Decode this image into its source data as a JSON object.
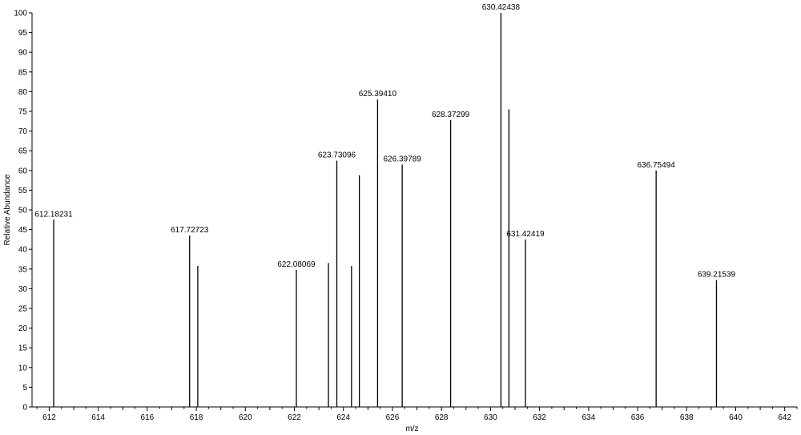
{
  "chart_data": {
    "type": "bar",
    "title": "",
    "xlabel": "m/z",
    "ylabel": "Relative Abundance",
    "xlim": [
      611.3,
      642.5
    ],
    "ylim": [
      0,
      100
    ],
    "grid": false,
    "legend": "none",
    "colors": {
      "axis": "#000000",
      "peak": "#000000"
    },
    "x_ticks": [
      612,
      614,
      616,
      618,
      620,
      622,
      624,
      626,
      628,
      630,
      632,
      634,
      636,
      638,
      640,
      642
    ],
    "y_ticks": [
      0,
      5,
      10,
      15,
      20,
      25,
      30,
      35,
      40,
      45,
      50,
      55,
      60,
      65,
      70,
      75,
      80,
      85,
      90,
      95,
      100
    ],
    "peaks": [
      {
        "x": 612.18231,
        "y": 47.5,
        "label": "612.18231"
      },
      {
        "x": 617.72723,
        "y": 43.5,
        "label": "617.72723"
      },
      {
        "x": 618.06,
        "y": 35.8,
        "label": ""
      },
      {
        "x": 622.08069,
        "y": 34.8,
        "label": "622.08069"
      },
      {
        "x": 623.39,
        "y": 36.5,
        "label": ""
      },
      {
        "x": 623.73096,
        "y": 62.5,
        "label": "623.73096"
      },
      {
        "x": 624.33,
        "y": 35.8,
        "label": ""
      },
      {
        "x": 624.65,
        "y": 58.8,
        "label": ""
      },
      {
        "x": 625.3941,
        "y": 78.0,
        "label": "625.39410"
      },
      {
        "x": 626.39789,
        "y": 61.5,
        "label": "626.39789"
      },
      {
        "x": 628.37299,
        "y": 72.8,
        "label": "628.37299"
      },
      {
        "x": 630.42438,
        "y": 100.0,
        "label": "630.42438"
      },
      {
        "x": 630.75,
        "y": 75.5,
        "label": ""
      },
      {
        "x": 631.42419,
        "y": 42.5,
        "label": "631.42419"
      },
      {
        "x": 636.75494,
        "y": 60.0,
        "label": "636.75494"
      },
      {
        "x": 639.21539,
        "y": 32.2,
        "label": "639.21539"
      }
    ]
  }
}
